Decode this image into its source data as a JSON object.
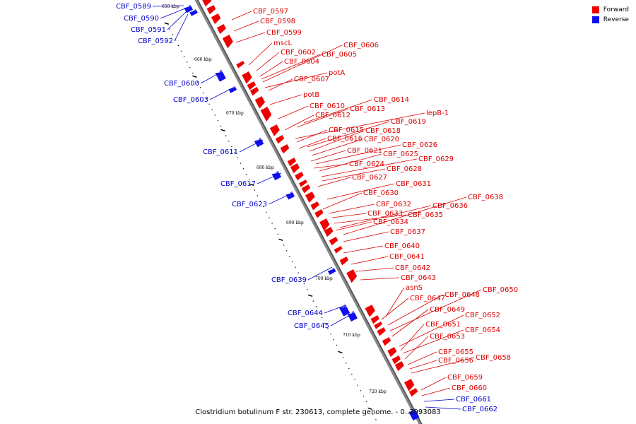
{
  "caption": "Clostridium botulinum F str. 230613, complete genome. - 0..3993083",
  "legend": [
    {
      "label": "Forward",
      "color": "#ee0000"
    },
    {
      "label": "Reverse",
      "color": "#1010ee"
    }
  ],
  "colors": {
    "forward": "#ee0000",
    "reverse": "#1010ee",
    "backbone": "#888888",
    "label_forward": "#dd0000",
    "label_reverse": "#0000cc"
  },
  "ticks": [
    "650 kbp",
    "660 kbp",
    "670 kbp",
    "680 kbp",
    "690 kbp",
    "700 kbp",
    "710 kbp",
    "720 kbp"
  ],
  "forward_labels": [
    "CBF_0597",
    "CBF_0598",
    "CBF_0599",
    "mscL",
    "CBF_0602",
    "CBF_0605",
    "CBF_0606",
    "CBF_0604",
    "potA",
    "CBF_0607",
    "potB",
    "CBF_0614",
    "CBF_0610",
    "CBF_0613",
    "CBF_0612",
    "lepB-1",
    "CBF_0619",
    "CBF_0615",
    "CBF_0618",
    "CBF_0616",
    "CBF_0620",
    "CBF_0626",
    "CBF_0621",
    "CBF_0625",
    "CBF_0629",
    "CBF_0624",
    "CBF_0628",
    "CBF_0627",
    "CBF_0631",
    "CBF_0630",
    "CBF_0638",
    "CBF_0636",
    "CBF_0632",
    "CBF_0635",
    "CBF_0633",
    "CBF_0634",
    "CBF_0637",
    "CBF_0640",
    "CBF_0641",
    "CBF_0642",
    "CBF_0643",
    "asnS",
    "CBF_0650",
    "CBF_0648",
    "CBF_0647",
    "CBF_0649",
    "CBF_0652",
    "CBF_0651",
    "CBF_0654",
    "CBF_0653",
    "CBF_0655",
    "CBF_0658",
    "CBF_0656",
    "CBF_0659",
    "CBF_0660"
  ],
  "reverse_labels": [
    "CBF_0589",
    "CBF_0590",
    "CBF_0591",
    "CBF_0592",
    "CBF_0600",
    "CBF_0603",
    "CBF_0611",
    "CBF_0617",
    "CBF_0623",
    "CBF_0639",
    "CBF_0644",
    "CBF_0645",
    "CBF_0661",
    "CBF_0662"
  ]
}
